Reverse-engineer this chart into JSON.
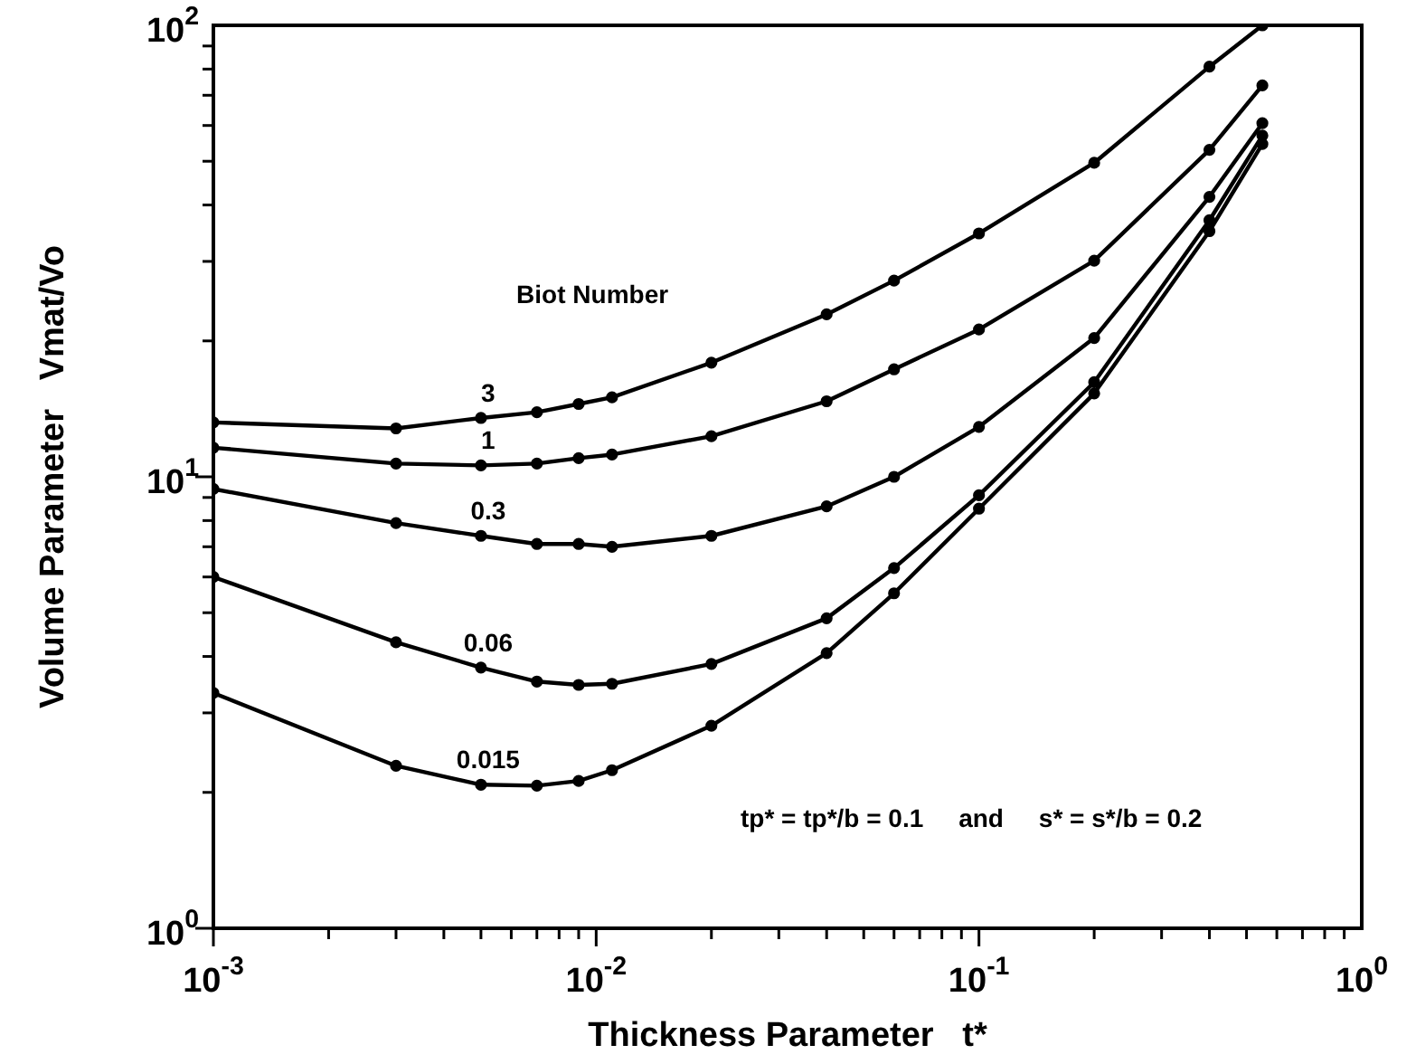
{
  "chart_data": {
    "type": "line",
    "xlabel": "Thickness Parameter   t*",
    "ylabel": "Volume Parameter   Vmat/Vo",
    "log": "xy",
    "xlim": [
      0.001,
      1
    ],
    "ylim": [
      1,
      100
    ],
    "xticks": [
      {
        "value": 0.001,
        "label": "10$^{-3}$"
      },
      {
        "value": 0.01,
        "label": "10$^{-2}$"
      },
      {
        "value": 0.1,
        "label": "10$^{-1}$"
      },
      {
        "value": 1,
        "label": "10$^{0}$"
      }
    ],
    "yticks": [
      {
        "value": 1,
        "label": "10$^{0}$"
      },
      {
        "value": 10,
        "label": "10$^{1}$"
      },
      {
        "value": 100,
        "label": "10$^{2}$"
      }
    ],
    "x": [
      0.001,
      0.003,
      0.005,
      0.007,
      0.009,
      0.011,
      0.02,
      0.04,
      0.06,
      0.1,
      0.2,
      0.4,
      0.55
    ],
    "marker": "circle",
    "line_style": "solid",
    "legend": false,
    "grid": false,
    "series": [
      {
        "name": "3",
        "color": "#000000",
        "values": [
          13.2,
          12.8,
          13.5,
          13.9,
          14.5,
          15.0,
          17.9,
          22.9,
          27.2,
          34.6,
          49.6,
          81,
          100
        ]
      },
      {
        "name": "1",
        "color": "#000000",
        "values": [
          11.6,
          10.7,
          10.6,
          10.7,
          11.0,
          11.2,
          12.3,
          14.7,
          17.3,
          21.2,
          30.1,
          53,
          73.6
        ]
      },
      {
        "name": "0.3",
        "color": "#000000",
        "values": [
          9.4,
          7.9,
          7.4,
          7.1,
          7.1,
          7.0,
          7.4,
          8.6,
          10.0,
          12.9,
          20.3,
          41.7,
          60.7
        ]
      },
      {
        "name": "0.06",
        "color": "#000000",
        "values": [
          6.0,
          4.3,
          3.78,
          3.52,
          3.46,
          3.48,
          3.85,
          4.86,
          6.28,
          9.1,
          16.2,
          37,
          57
        ]
      },
      {
        "name": "0.015",
        "color": "#000000",
        "values": [
          3.32,
          2.29,
          2.08,
          2.07,
          2.12,
          2.24,
          2.81,
          4.07,
          5.52,
          8.5,
          15.3,
          35,
          54.6
        ]
      }
    ],
    "annotations": [
      "Biot Number",
      "tp* = tp*/b = 0.1     and     s* = s*/b = 0.2"
    ]
  }
}
